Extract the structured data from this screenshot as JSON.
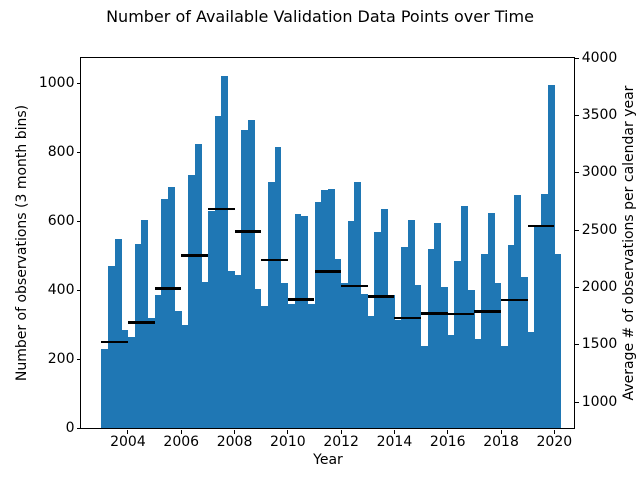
{
  "chart_data": {
    "type": "bar",
    "title": "Number of Available Validation Data Points over Time",
    "xlabel": "Year",
    "ylabel_left": "Number of observations (3 month bins)",
    "ylabel_right": "Average # of observations per calendar year",
    "bar_color": "#1f77b4",
    "marker_color": "#000000",
    "grid": false,
    "legend": null,
    "x_ticks": [
      2004,
      2006,
      2008,
      2010,
      2012,
      2014,
      2016,
      2018,
      2020
    ],
    "yticks_left": [
      0,
      200,
      400,
      600,
      800,
      1000
    ],
    "yticks_right": [
      1000,
      1500,
      2000,
      2500,
      3000,
      3500,
      4000
    ],
    "ylim_left": [
      0,
      1075
    ],
    "ylim_right": [
      750,
      4018
    ],
    "xlim": [
      2002.24,
      2020.74
    ],
    "bars": {
      "bin_months": 3,
      "start_year": 2003,
      "description": "Number of observations per 3-month bin, 2003Q1 through 2020Q1",
      "values": [
        230,
        470,
        550,
        285,
        265,
        535,
        605,
        320,
        385,
        665,
        700,
        340,
        300,
        735,
        825,
        425,
        630,
        905,
        1020,
        455,
        445,
        865,
        895,
        405,
        355,
        715,
        815,
        420,
        360,
        620,
        615,
        360,
        655,
        690,
        695,
        490,
        420,
        600,
        715,
        390,
        325,
        570,
        635,
        385,
        315,
        525,
        605,
        415,
        240,
        520,
        595,
        410,
        270,
        485,
        645,
        400,
        260,
        505,
        625,
        420,
        240,
        530,
        675,
        440,
        280,
        585,
        680,
        995,
        505
      ]
    },
    "yearly_averages": {
      "description": "Black horizontal markers, one per calendar year, right axis scale",
      "years": [
        2003,
        2004,
        2005,
        2006,
        2007,
        2008,
        2009,
        2010,
        2011,
        2012,
        2013,
        2014,
        2015,
        2016,
        2017,
        2018,
        2019
      ],
      "values": [
        1525,
        1695,
        1990,
        2280,
        2685,
        2490,
        2240,
        1895,
        2140,
        2015,
        1920,
        1735,
        1775,
        1770,
        1790,
        1890,
        2535
      ]
    }
  }
}
